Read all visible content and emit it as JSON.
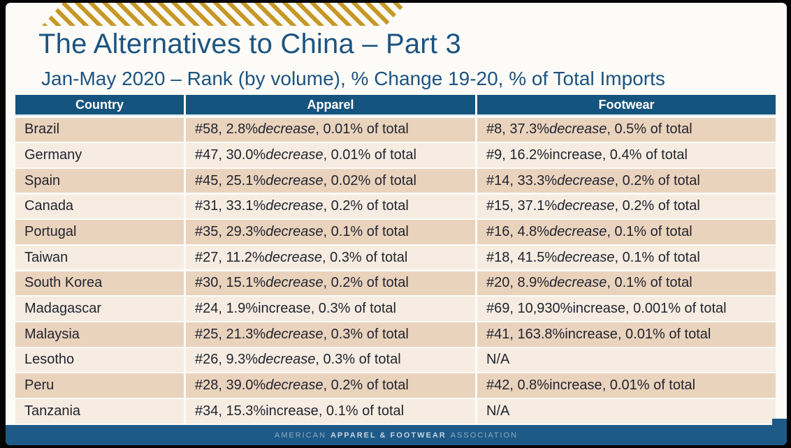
{
  "slide": {
    "title": "The Alternatives to China – Part 3",
    "subtitle": "Jan-May 2020 – Rank (by volume), % Change 19-20, % of Total Imports"
  },
  "table": {
    "headers": [
      "Country",
      "Apparel",
      "Footwear"
    ],
    "rows": [
      {
        "country": "Brazil",
        "apparel": {
          "rank": "#58",
          "change": "2.8%",
          "direction": "decrease",
          "share": "0.01% of total"
        },
        "footwear": {
          "rank": "#8",
          "change": "37.3%",
          "direction": "decrease",
          "share": "0.5% of total"
        }
      },
      {
        "country": "Germany",
        "apparel": {
          "rank": "#47",
          "change": "30.0%",
          "direction": "decrease",
          "share": "0.01% of total"
        },
        "footwear": {
          "rank": "#9",
          "change": "16.2%",
          "direction": "increase",
          "share": "0.4% of total"
        }
      },
      {
        "country": "Spain",
        "apparel": {
          "rank": "#45",
          "change": "25.1%",
          "direction": "decrease",
          "share": "0.02% of total"
        },
        "footwear": {
          "rank": "#14",
          "change": "33.3%",
          "direction": "decrease",
          "share": "0.2% of total"
        }
      },
      {
        "country": "Canada",
        "apparel": {
          "rank": "#31",
          "change": "33.1%",
          "direction": "decrease",
          "share": "0.2% of total"
        },
        "footwear": {
          "rank": "#15",
          "change": "37.1%",
          "direction": "decrease",
          "share": "0.2% of total"
        }
      },
      {
        "country": "Portugal",
        "apparel": {
          "rank": "#35",
          "change": "29.3%",
          "direction": "decrease",
          "share": "0.1% of total"
        },
        "footwear": {
          "rank": "#16",
          "change": "4.8%",
          "direction": "decrease",
          "share": "0.1% of total"
        }
      },
      {
        "country": "Taiwan",
        "apparel": {
          "rank": "#27",
          "change": "11.2%",
          "direction": "decrease",
          "share": "0.3% of total"
        },
        "footwear": {
          "rank": "#18",
          "change": "41.5%",
          "direction": "decrease",
          "share": "0.1% of total"
        }
      },
      {
        "country": "South Korea",
        "apparel": {
          "rank": "#30",
          "change": "15.1%",
          "direction": "decrease",
          "share": "0.2% of total"
        },
        "footwear": {
          "rank": "#20",
          "change": "8.9%",
          "direction": "decrease",
          "share": "0.1% of total"
        }
      },
      {
        "country": "Madagascar",
        "apparel": {
          "rank": "#24",
          "change": "1.9%",
          "direction": "increase",
          "share": "0.3% of total"
        },
        "footwear": {
          "rank": "#69",
          "change": "10,930%",
          "direction": "increase",
          "share": "0.001% of total"
        }
      },
      {
        "country": "Malaysia",
        "apparel": {
          "rank": "#25",
          "change": "21.3%",
          "direction": "decrease",
          "share": "0.3% of total"
        },
        "footwear": {
          "rank": "#41",
          "change": "163.8%",
          "direction": "increase",
          "share": "0.01% of total"
        }
      },
      {
        "country": "Lesotho",
        "apparel": {
          "rank": "#26",
          "change": "9.3%",
          "direction": "decrease",
          "share": "0.3% of total"
        },
        "footwear": {
          "na": "N/A"
        }
      },
      {
        "country": "Peru",
        "apparel": {
          "rank": "#28",
          "change": "39.0%",
          "direction": "decrease",
          "share": "0.2% of total"
        },
        "footwear": {
          "rank": "#42",
          "change": "0.8%",
          "direction": "increase",
          "share": "0.01% of total"
        }
      },
      {
        "country": "Tanzania",
        "apparel": {
          "rank": "#34",
          "change": "15.3%",
          "direction": "increase",
          "share": "0.1% of total"
        },
        "footwear": {
          "na": "N/A"
        }
      }
    ]
  },
  "footer": {
    "text_left": "AMERICAN",
    "text_bold": "APPAREL & FOOTWEAR",
    "text_right": "ASSOCIATION"
  },
  "colors": {
    "title-blue": "#1d5380",
    "header-blue": "#15547e",
    "row-dark": "#ead3bd",
    "row-light": "#f6ece1",
    "cell-text": "#21242f",
    "gold": "#c79827",
    "footer-blue": "#1d5a87",
    "footer-text": "#92a9c0",
    "footer-text-bold": "#c6d4e1"
  }
}
